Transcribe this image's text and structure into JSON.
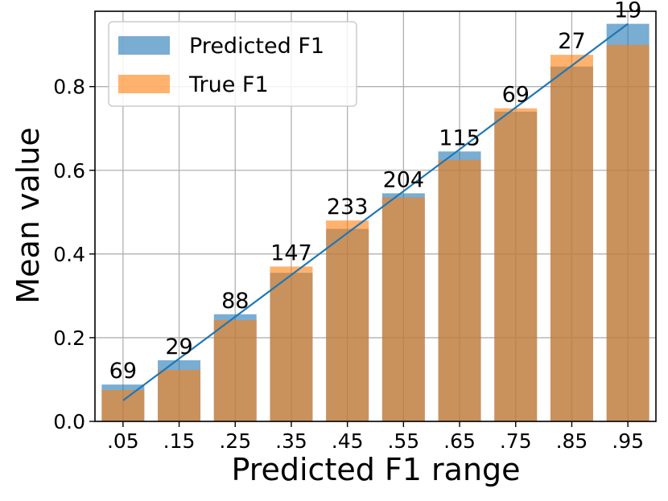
{
  "chart_data": {
    "type": "bar",
    "categories": [
      ".05",
      ".15",
      ".25",
      ".35",
      ".45",
      ".55",
      ".65",
      ".75",
      ".85",
      ".95"
    ],
    "series": [
      {
        "name": "Predicted F1",
        "values": [
          0.088,
          0.146,
          0.256,
          0.355,
          0.46,
          0.545,
          0.645,
          0.74,
          0.848,
          0.95
        ],
        "color": "#1f77b4"
      },
      {
        "name": "True F1",
        "values": [
          0.075,
          0.123,
          0.242,
          0.37,
          0.48,
          0.535,
          0.625,
          0.748,
          0.876,
          0.9
        ],
        "color": "#ff7f0e"
      }
    ],
    "counts": [
      "69",
      "29",
      "88",
      "147",
      "233",
      "204",
      "115",
      "69",
      "27",
      "19"
    ],
    "reference_line": {
      "x": [
        0.05,
        0.95
      ],
      "y": [
        0.05,
        0.95
      ],
      "color": "#1f77b4"
    },
    "xlabel": "Predicted F1 range",
    "ylabel": "Mean value",
    "ylim": [
      0,
      0.98
    ],
    "yticks": [
      "0.0",
      "0.2",
      "0.4",
      "0.6",
      "0.8"
    ],
    "ytick_values": [
      0,
      0.2,
      0.4,
      0.6,
      0.8
    ],
    "grid": true,
    "legend_position": "upper-left"
  }
}
